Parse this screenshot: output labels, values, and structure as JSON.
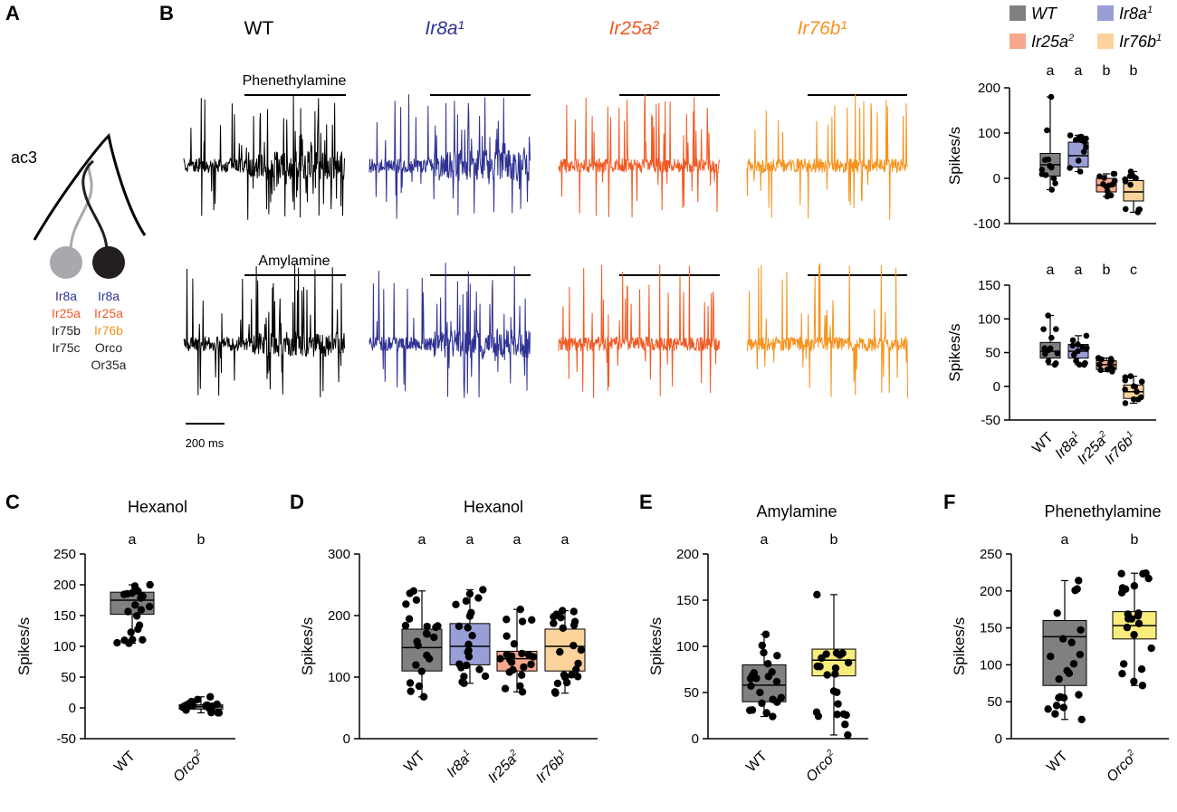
{
  "panel_letters": {
    "a": "A",
    "b": "B",
    "c": "C",
    "d": "D",
    "e": "E",
    "f": "F"
  },
  "colors": {
    "wt": "#000000",
    "ir8a": "#2e3192",
    "ir25a": "#f15a24",
    "ir76b": "#f7931e",
    "wt_fill": "#808080",
    "ir8a_fill": "#9a9ed6",
    "ir25a_fill": "#f9a78c",
    "ir76b_fill": "#fcd39b",
    "orco_fill": "#f8ec7c",
    "grey_neuron": "#a7a9ac",
    "black_neuron": "#231f20"
  },
  "diagram": {
    "sensillum": "ac3",
    "left_neuron": [
      "Ir8a",
      "Ir25a",
      "Ir75b",
      "Ir75c"
    ],
    "right_neuron": [
      "Ir8a",
      "Ir25a",
      "Ir76b",
      "Orco",
      "Or35a"
    ]
  },
  "traces": {
    "genotypes": [
      "WT",
      "Ir8a¹",
      "Ir25a²",
      "Ir76b¹"
    ],
    "odor_top": "Phenethylamine",
    "odor_bottom": "Amylamine",
    "scale_bar": "200 ms"
  },
  "legend": {
    "wt": "WT",
    "ir8a": "Ir8a",
    "ir8a_sup": "1",
    "ir25a": "Ir25a",
    "ir25a_sup": "2",
    "ir76b": "Ir76b",
    "ir76b_sup": "1"
  },
  "chart_data": [
    {
      "id": "B-top",
      "type": "box",
      "title": "",
      "ylabel": "Spikes/s",
      "ylim": [
        -100,
        200
      ],
      "yticks": [
        -100,
        0,
        100,
        200
      ],
      "categories": [
        "WT",
        "Ir8a1",
        "Ir25a2",
        "Ir76b1"
      ],
      "letters": [
        "a",
        "a",
        "b",
        "b"
      ],
      "boxes": [
        {
          "min": -25,
          "q1": 5,
          "median": 30,
          "q3": 55,
          "max": 180
        },
        {
          "min": 15,
          "q1": 25,
          "median": 50,
          "q3": 80,
          "max": 95
        },
        {
          "min": -40,
          "q1": -30,
          "median": -15,
          "q3": 0,
          "max": 10
        },
        {
          "min": -75,
          "q1": -50,
          "median": -30,
          "q3": -5,
          "max": 15
        }
      ]
    },
    {
      "id": "B-bottom",
      "type": "box",
      "title": "",
      "ylabel": "Spikes/s",
      "ylim": [
        -50,
        150
      ],
      "yticks": [
        -50,
        0,
        50,
        100,
        150
      ],
      "categories": [
        "WT",
        "Ir8a1",
        "Ir25a2",
        "Ir76b1"
      ],
      "letters": [
        "a",
        "a",
        "b",
        "c"
      ],
      "boxes": [
        {
          "min": 32,
          "q1": 42,
          "median": 52,
          "q3": 65,
          "max": 105
        },
        {
          "min": 32,
          "q1": 42,
          "median": 52,
          "q3": 62,
          "max": 75
        },
        {
          "min": 22,
          "q1": 25,
          "median": 32,
          "q3": 38,
          "max": 42
        },
        {
          "min": -25,
          "q1": -18,
          "median": -8,
          "q3": 2,
          "max": 15
        }
      ]
    },
    {
      "id": "C",
      "type": "box",
      "title": "Hexanol",
      "ylabel": "Spikes/s",
      "ylim": [
        -50,
        250
      ],
      "yticks": [
        -50,
        0,
        50,
        100,
        150,
        200,
        250
      ],
      "categories": [
        "WT",
        "Orco2"
      ],
      "letters": [
        "a",
        "b"
      ],
      "boxes": [
        {
          "min": 105,
          "q1": 152,
          "median": 175,
          "q3": 188,
          "max": 200
        },
        {
          "min": -8,
          "q1": -2,
          "median": 2,
          "q3": 5,
          "max": 18
        }
      ]
    },
    {
      "id": "D",
      "type": "box",
      "title": "Hexanol",
      "ylabel": "Spikes/s",
      "ylim": [
        0,
        300
      ],
      "yticks": [
        0,
        100,
        200,
        300
      ],
      "categories": [
        "WT",
        "Ir8a1",
        "Ir25a2",
        "Ir76b1"
      ],
      "letters": [
        "a",
        "a",
        "a",
        "a"
      ],
      "boxes": [
        {
          "min": 68,
          "q1": 110,
          "median": 148,
          "q3": 178,
          "max": 240
        },
        {
          "min": 90,
          "q1": 120,
          "median": 150,
          "q3": 187,
          "max": 242
        },
        {
          "min": 76,
          "q1": 110,
          "median": 130,
          "q3": 142,
          "max": 210
        },
        {
          "min": 74,
          "q1": 110,
          "median": 150,
          "q3": 178,
          "max": 208
        }
      ]
    },
    {
      "id": "E",
      "type": "box",
      "title": "Amylamine",
      "ylabel": "Spikes/s",
      "ylim": [
        0,
        200
      ],
      "yticks": [
        0,
        50,
        100,
        150,
        200
      ],
      "categories": [
        "WT",
        "Orco2"
      ],
      "letters": [
        "a",
        "b"
      ],
      "boxes": [
        {
          "min": 24,
          "q1": 40,
          "median": 58,
          "q3": 80,
          "max": 113
        },
        {
          "min": 4,
          "q1": 68,
          "median": 85,
          "q3": 97,
          "max": 156
        }
      ]
    },
    {
      "id": "F",
      "type": "box",
      "title": "Phenethylamine",
      "ylabel": "Spikes/s",
      "ylim": [
        0,
        250
      ],
      "yticks": [
        0,
        50,
        100,
        150,
        200,
        250
      ],
      "categories": [
        "WT",
        "Orco2"
      ],
      "letters": [
        "a",
        "b"
      ],
      "boxes": [
        {
          "min": 26,
          "q1": 72,
          "median": 138,
          "q3": 160,
          "max": 214
        },
        {
          "min": 72,
          "q1": 135,
          "median": 153,
          "q3": 172,
          "max": 224
        }
      ]
    }
  ]
}
